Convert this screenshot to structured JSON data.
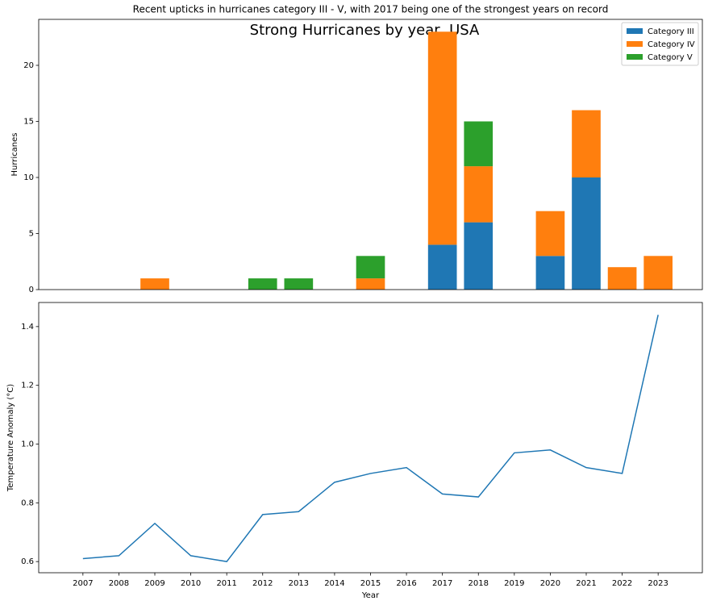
{
  "title": "Strong Hurricanes by year, USA",
  "chart_data": [
    {
      "type": "bar",
      "stacked": true,
      "title": "Recent upticks in hurricanes category III - V, with 2017 being one of the strongest years on record",
      "y_label": "Hurricanes",
      "x": [
        2007,
        2008,
        2009,
        2010,
        2011,
        2012,
        2013,
        2014,
        2015,
        2016,
        2017,
        2018,
        2019,
        2020,
        2021,
        2022,
        2023
      ],
      "series": [
        {
          "name": "Category III",
          "color": "#1f77b4",
          "values": [
            0,
            0,
            0,
            0,
            0,
            0,
            0,
            0,
            0,
            0,
            4,
            6,
            0,
            3,
            10,
            0,
            0
          ]
        },
        {
          "name": "Category IV",
          "color": "#ff7f0e",
          "values": [
            0,
            0,
            1,
            0,
            0,
            0,
            0,
            0,
            1,
            0,
            19,
            5,
            0,
            4,
            6,
            2,
            3
          ]
        },
        {
          "name": "Category V",
          "color": "#2ca02c",
          "values": [
            0,
            0,
            0,
            0,
            0,
            1,
            1,
            0,
            2,
            0,
            0,
            4,
            0,
            0,
            0,
            0,
            0
          ]
        }
      ],
      "xlim": [
        2005.77,
        2024.23
      ],
      "ylim": [
        0,
        24.1
      ],
      "yticks": [
        0,
        5,
        10,
        15,
        20
      ],
      "legend": "upper right"
    },
    {
      "type": "line",
      "x_label": "Year",
      "y_label": "Temperature Anomaly (°C)",
      "x": [
        2007,
        2008,
        2009,
        2010,
        2011,
        2012,
        2013,
        2014,
        2015,
        2016,
        2017,
        2018,
        2019,
        2020,
        2021,
        2022,
        2023
      ],
      "series": [
        {
          "color": "#1f77b4",
          "values": [
            0.61,
            0.62,
            0.73,
            0.62,
            0.6,
            0.76,
            0.77,
            0.87,
            0.9,
            0.92,
            0.83,
            0.82,
            0.97,
            0.98,
            0.92,
            0.9,
            1.44
          ]
        }
      ],
      "xlim": [
        2005.77,
        2024.23
      ],
      "xticks": [
        2007,
        2008,
        2009,
        2010,
        2011,
        2012,
        2013,
        2014,
        2015,
        2016,
        2017,
        2018,
        2019,
        2020,
        2021,
        2022,
        2023
      ],
      "ylim": [
        0.562,
        1.482
      ],
      "yticks": [
        0.6,
        0.8,
        {
          "value": 1,
          "label": "1.0"
        },
        1.2,
        1.4
      ]
    }
  ]
}
